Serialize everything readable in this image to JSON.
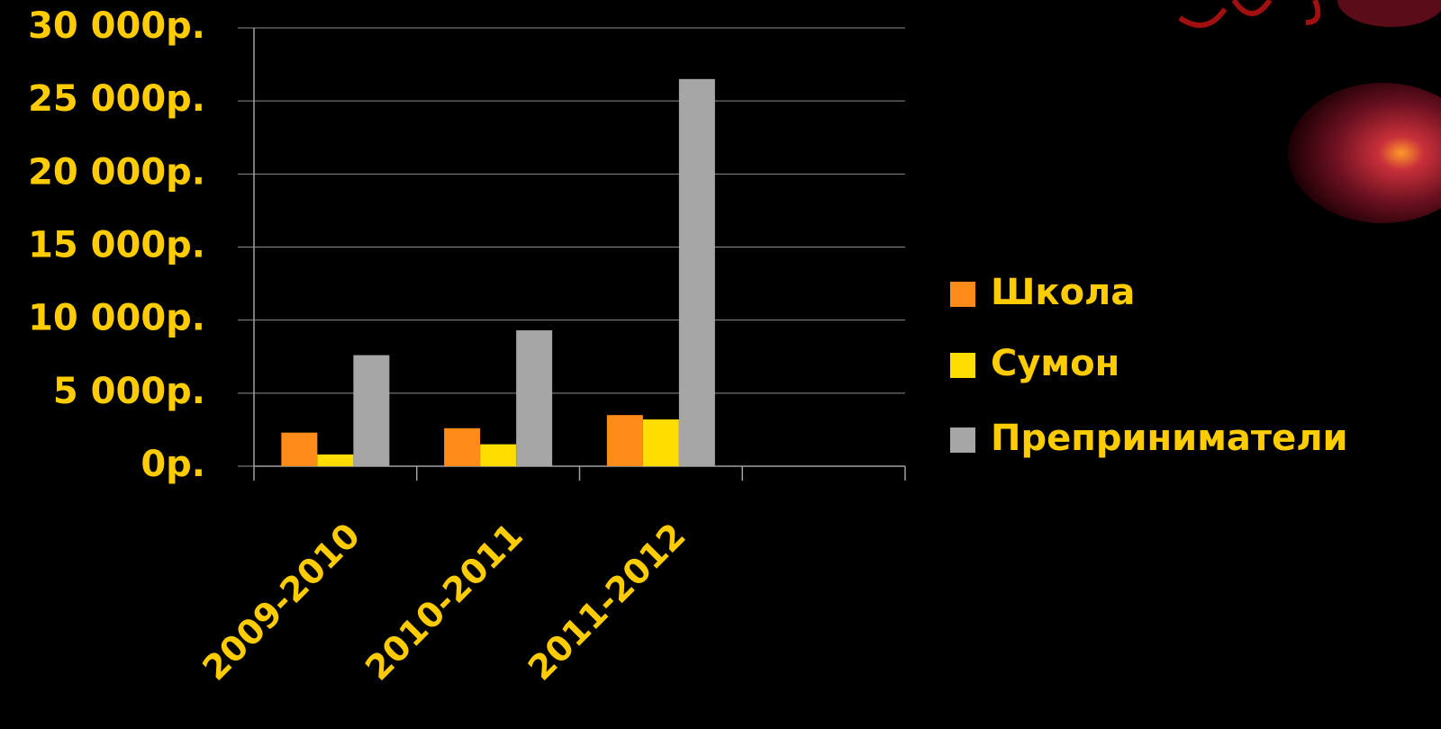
{
  "chart_data": {
    "type": "bar",
    "categories": [
      "2009-2010",
      "2010-2011",
      "2011-2012",
      null
    ],
    "series": [
      {
        "name": "Школа",
        "color": "#ff8c1a",
        "values": [
          2300,
          2600,
          3500,
          null
        ]
      },
      {
        "name": "Сумон",
        "color": "#ffdd00",
        "values": [
          800,
          1500,
          3200,
          null
        ]
      },
      {
        "name": "Преприниматели",
        "color": "#a6a6a6",
        "values": [
          7600,
          9300,
          26500,
          null
        ]
      }
    ],
    "ylim": [
      0,
      30000
    ],
    "yticks": [
      {
        "value": 0,
        "label": "0р."
      },
      {
        "value": 5000,
        "label": "5 000р."
      },
      {
        "value": 10000,
        "label": "10 000р."
      },
      {
        "value": 15000,
        "label": "15 000р."
      },
      {
        "value": 20000,
        "label": "20 000р."
      },
      {
        "value": 25000,
        "label": "25 000р."
      },
      {
        "value": 30000,
        "label": "30 000р."
      }
    ],
    "grid": true,
    "legend": "right"
  }
}
